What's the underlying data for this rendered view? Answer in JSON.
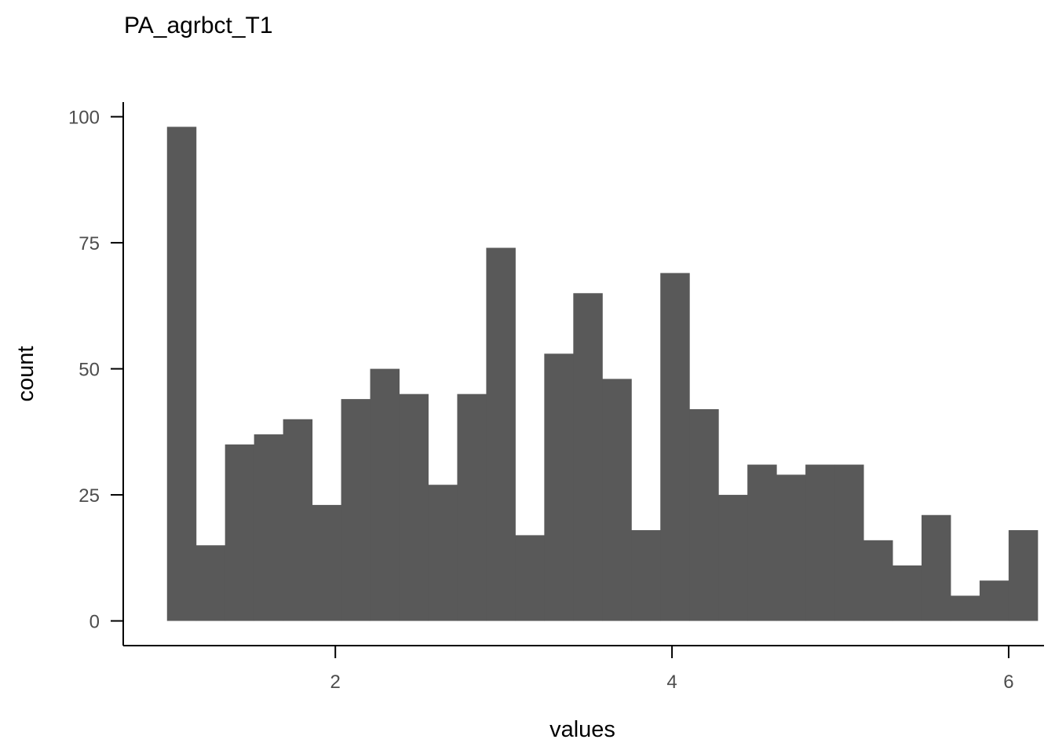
{
  "chart_data": {
    "type": "bar",
    "title": "PA_agrbct_T1",
    "xlabel": "values",
    "ylabel": "count",
    "bin_start": 1,
    "bin_width": 0.1724,
    "values": [
      98,
      15,
      35,
      37,
      40,
      23,
      44,
      50,
      45,
      27,
      45,
      74,
      17,
      53,
      65,
      48,
      18,
      69,
      42,
      25,
      31,
      29,
      31,
      31,
      16,
      11,
      21,
      5,
      8,
      18
    ],
    "xlim": [
      0.74,
      6.21
    ],
    "ylim": [
      -4.9,
      102.9
    ],
    "x_ticks": [
      2,
      4,
      6
    ],
    "x_tick_labels": [
      "2",
      "4",
      "6"
    ],
    "y_ticks": [
      0,
      25,
      50,
      75,
      100
    ],
    "y_tick_labels": [
      "0",
      "25",
      "50",
      "75",
      "100"
    ],
    "grid": false,
    "legend": "none",
    "bar_color": "#595959",
    "axis_color": "#000000",
    "tick_label_color": "#4d4d4d"
  }
}
